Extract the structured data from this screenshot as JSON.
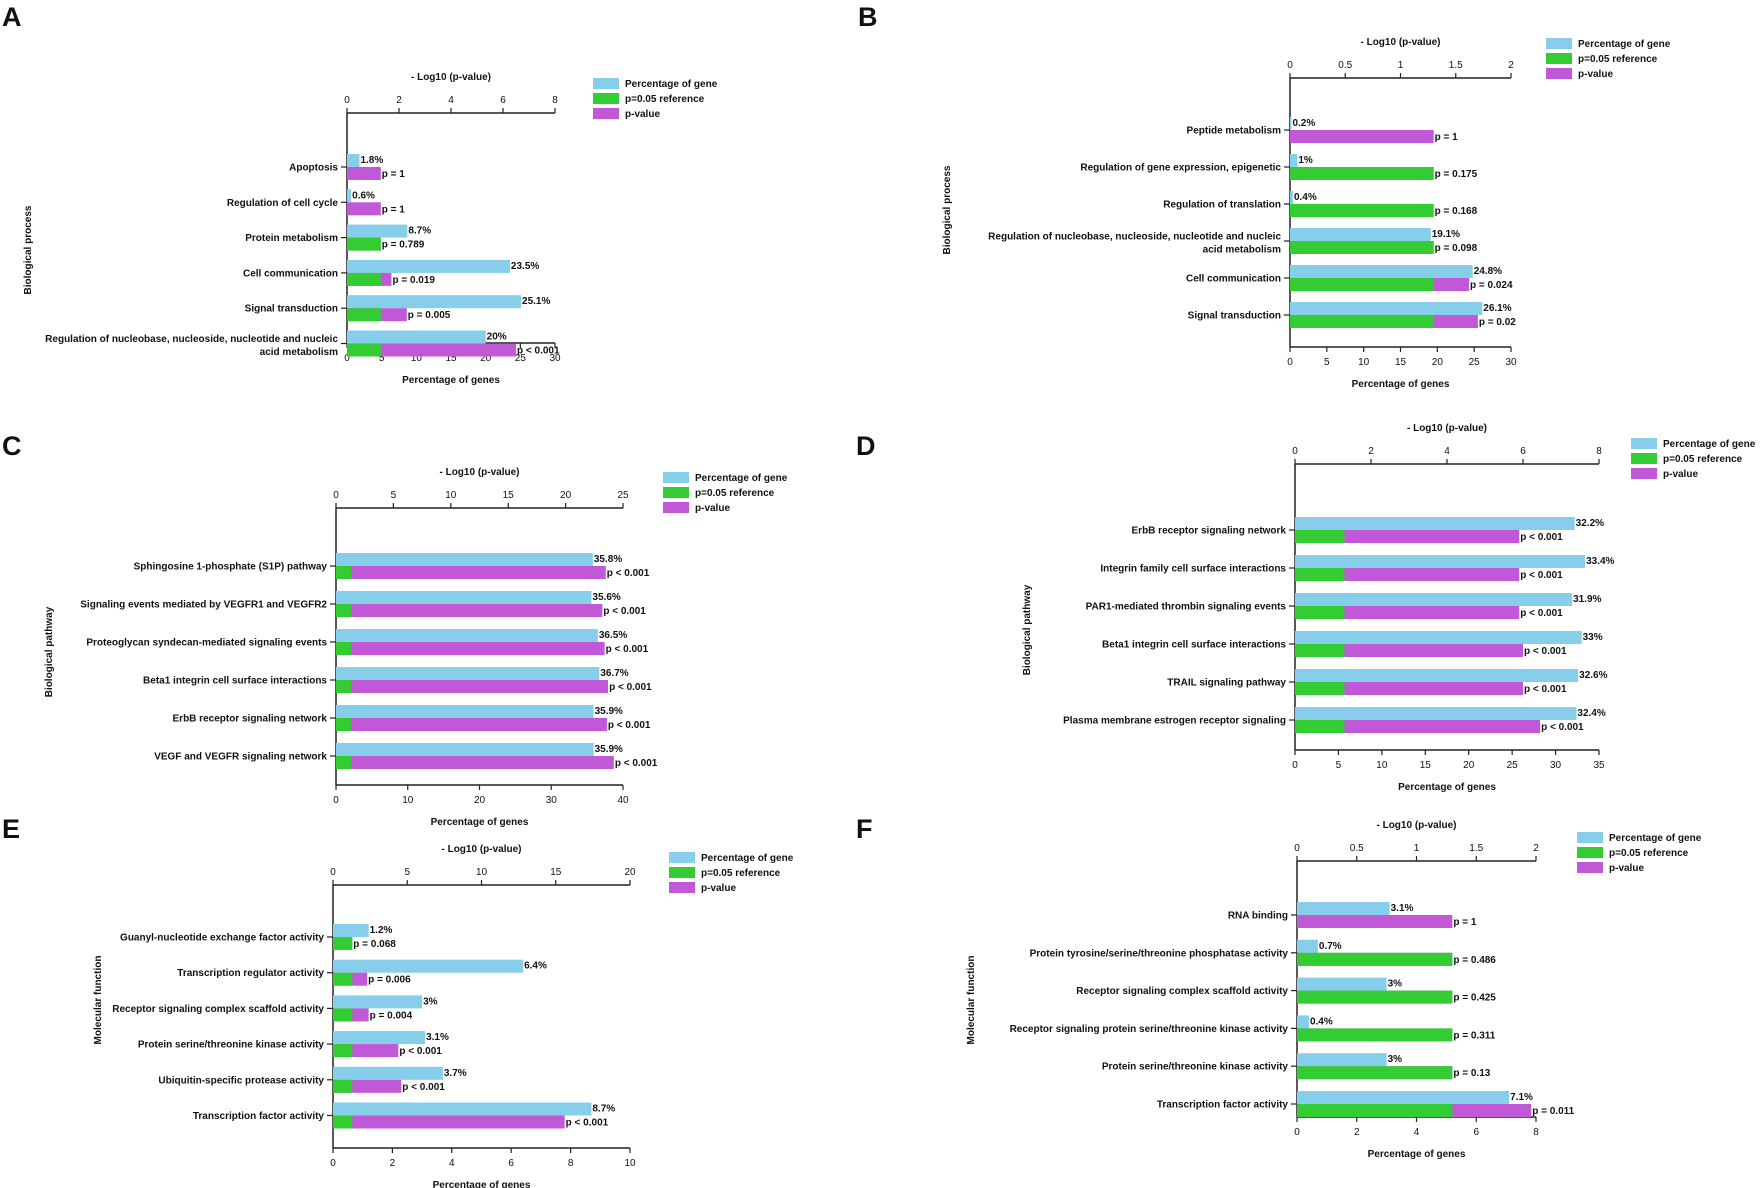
{
  "colors": {
    "percent": "#87CEEB",
    "reference": "#33CC33",
    "pvalue": "#C158D8",
    "axis": "#222222",
    "text": "#111111"
  },
  "legend": [
    "Percentage of gene",
    "p=0.05 reference",
    "p-value"
  ],
  "top_axis_label": "- Log10 (p-value)",
  "bottom_axis_label": "Percentage of genes",
  "chart_data": [
    {
      "panel": "A",
      "type": "bar",
      "ylabel": "Biological process",
      "xlim_pct": [
        0,
        30
      ],
      "xticks_pct": [
        0,
        5,
        10,
        15,
        20,
        25,
        30
      ],
      "xlim_log": [
        0,
        8
      ],
      "xticks_log": [
        0,
        2,
        4,
        6,
        8
      ],
      "reference_log": 1.301,
      "categories": [
        "Apoptosis",
        "Regulation of cell cycle",
        "Protein metabolism",
        "Cell communication",
        "Signal transduction",
        "Regulation of nucleobase, nucleoside, nucleotide and nucleic acid metabolism"
      ],
      "cat_lines": [
        [
          "Apoptosis"
        ],
        [
          "Regulation of cell cycle"
        ],
        [
          "Protein metabolism"
        ],
        [
          "Cell communication"
        ],
        [
          "Signal transduction"
        ],
        [
          "Regulation of nucleobase, nucleoside, nucleotide and nucleic",
          "acid metabolism"
        ]
      ],
      "percent": [
        1.8,
        0.6,
        8.7,
        23.5,
        25.1,
        20
      ],
      "percent_labels": [
        "1.8%",
        "0.6%",
        "8.7%",
        "23.5%",
        "25.1%",
        "20%"
      ],
      "log_pvalue": [
        1.3,
        1.3,
        1.3,
        1.71,
        2.3,
        6.5
      ],
      "p_labels": [
        "p = 1",
        "p = 1",
        "p = 0.789",
        "p = 0.019",
        "p = 0.005",
        "p < 0.001"
      ]
    },
    {
      "panel": "B",
      "type": "bar",
      "ylabel": "Biological process",
      "xlim_pct": [
        0,
        30
      ],
      "xticks_pct": [
        0,
        5,
        10,
        15,
        20,
        25,
        30
      ],
      "xlim_log": [
        0,
        2
      ],
      "xticks_log": [
        0,
        0.5,
        1,
        1.5,
        2
      ],
      "xtick_labels_log": [
        "0",
        "0.5",
        "1",
        "1.5",
        "2"
      ],
      "reference_log": 1.301,
      "categories": [
        "Peptide metabolism",
        "Regulation of gene expression, epigenetic",
        "Regulation of translation",
        "Regulation of nucleobase, nucleoside, nucleotide and nucleic acid metabolism",
        "Cell communication",
        "Signal transduction"
      ],
      "cat_lines": [
        [
          "Peptide metabolism"
        ],
        [
          "Regulation of gene expression, epigenetic"
        ],
        [
          "Regulation of translation"
        ],
        [
          "Regulation of nucleobase, nucleoside, nucleotide and nucleic",
          "acid metabolism"
        ],
        [
          "Cell communication"
        ],
        [
          "Signal transduction"
        ]
      ],
      "percent": [
        0.2,
        1,
        0.4,
        19.1,
        24.8,
        26.1
      ],
      "percent_labels": [
        "0.2%",
        "1%",
        "0.4%",
        "19.1%",
        "24.8%",
        "26.1%"
      ],
      "log_pvalue": [
        1.3,
        1.3,
        1.3,
        1.3,
        1.62,
        1.7
      ],
      "p_labels": [
        "p = 1",
        "p = 0.175",
        "p = 0.168",
        "p = 0.098",
        "p = 0.024",
        "p = 0.02"
      ]
    },
    {
      "panel": "C",
      "type": "bar",
      "ylabel": "Biological pathway",
      "xlim_pct": [
        0,
        40
      ],
      "xticks_pct": [
        0,
        10,
        20,
        30,
        40
      ],
      "xlim_log": [
        0,
        25
      ],
      "xticks_log": [
        0,
        5,
        10,
        15,
        20,
        25
      ],
      "reference_log": 1.301,
      "categories": [
        "Sphingosine 1-phosphate (S1P) pathway",
        "Signaling events mediated by VEGFR1 and VEGFR2",
        "Proteoglycan syndecan-mediated signaling events",
        "Beta1 integrin cell surface interactions",
        "ErbB receptor signaling network",
        "VEGF and VEGFR signaling network"
      ],
      "cat_lines": [
        [
          "Sphingosine 1-phosphate (S1P) pathway"
        ],
        [
          "Signaling events mediated by VEGFR1 and VEGFR2"
        ],
        [
          "Proteoglycan syndecan-mediated signaling events"
        ],
        [
          "Beta1 integrin cell surface interactions"
        ],
        [
          "ErbB receptor signaling network"
        ],
        [
          "VEGF and VEGFR signaling network"
        ]
      ],
      "percent": [
        35.8,
        35.6,
        36.5,
        36.7,
        35.9,
        35.9
      ],
      "percent_labels": [
        "35.8%",
        "35.6%",
        "36.5%",
        "36.7%",
        "35.9%",
        "35.9%"
      ],
      "log_pvalue": [
        23.5,
        23.2,
        23.4,
        23.7,
        23.6,
        24.2
      ],
      "p_labels": [
        "p < 0.001",
        "p < 0.001",
        "p < 0.001",
        "p < 0.001",
        "p < 0.001",
        "p < 0.001"
      ]
    },
    {
      "panel": "D",
      "type": "bar",
      "ylabel": "Biological pathway",
      "xlim_pct": [
        0,
        35
      ],
      "xticks_pct": [
        0,
        5,
        10,
        15,
        20,
        25,
        30,
        35
      ],
      "xlim_log": [
        0,
        8
      ],
      "xticks_log": [
        0,
        2,
        4,
        6,
        8
      ],
      "reference_log": 1.301,
      "categories": [
        "ErbB receptor signaling network",
        "Integrin family cell surface interactions",
        "PAR1-mediated thrombin signaling events",
        "Beta1 integrin cell surface interactions",
        "TRAIL signaling pathway",
        "Plasma membrane estrogen receptor signaling"
      ],
      "cat_lines": [
        [
          "ErbB receptor signaling network"
        ],
        [
          "Integrin family cell surface interactions"
        ],
        [
          "PAR1-mediated thrombin signaling events"
        ],
        [
          "Beta1 integrin cell surface interactions"
        ],
        [
          "TRAIL signaling pathway"
        ],
        [
          "Plasma membrane estrogen receptor signaling"
        ]
      ],
      "percent": [
        32.2,
        33.4,
        31.9,
        33,
        32.6,
        32.4
      ],
      "percent_labels": [
        "32.2%",
        "33.4%",
        "31.9%",
        "33%",
        "32.6%",
        "32.4%"
      ],
      "log_pvalue": [
        5.9,
        5.9,
        5.9,
        6.0,
        6.0,
        6.45
      ],
      "p_labels": [
        "p < 0.001",
        "p < 0.001",
        "p < 0.001",
        "p < 0.001",
        "p < 0.001",
        "p < 0.001"
      ]
    },
    {
      "panel": "E",
      "type": "bar",
      "ylabel": "Molecular function",
      "xlim_pct": [
        0,
        10
      ],
      "xticks_pct": [
        0,
        2,
        4,
        6,
        8,
        10
      ],
      "xlim_log": [
        0,
        20
      ],
      "xticks_log": [
        0,
        5,
        10,
        15,
        20
      ],
      "reference_log": 1.301,
      "categories": [
        "Guanyl-nucleotide exchange factor activity",
        "Transcription regulator activity",
        "Receptor signaling complex scaffold activity",
        "Protein serine/threonine kinase activity",
        "Ubiquitin-specific protease activity",
        "Transcription factor activity"
      ],
      "cat_lines": [
        [
          "Guanyl-nucleotide exchange factor activity"
        ],
        [
          "Transcription regulator activity"
        ],
        [
          "Receptor signaling complex scaffold activity"
        ],
        [
          "Protein serine/threonine kinase activity"
        ],
        [
          "Ubiquitin-specific protease activity"
        ],
        [
          "Transcription factor activity"
        ]
      ],
      "percent": [
        1.2,
        6.4,
        3,
        3.1,
        3.7,
        8.7
      ],
      "percent_labels": [
        "1.2%",
        "6.4%",
        "3%",
        "3.1%",
        "3.7%",
        "8.7%"
      ],
      "log_pvalue": [
        1.3,
        2.3,
        2.4,
        4.4,
        4.6,
        15.6
      ],
      "p_labels": [
        "p = 0.068",
        "p = 0.006",
        "p = 0.004",
        "p < 0.001",
        "p < 0.001",
        "p < 0.001"
      ]
    },
    {
      "panel": "F",
      "type": "bar",
      "ylabel": "Molecular function",
      "xlim_pct": [
        0,
        8
      ],
      "xticks_pct": [
        0,
        2,
        4,
        6,
        8
      ],
      "xlim_log": [
        0,
        2
      ],
      "xticks_log": [
        0,
        0.5,
        1,
        1.5,
        2
      ],
      "xtick_labels_log": [
        "0",
        "0.5",
        "1",
        "1.5",
        "2"
      ],
      "reference_log": 1.301,
      "categories": [
        "RNA binding",
        "Protein tyrosine/serine/threonine phosphatase activity",
        "Receptor signaling complex scaffold activity",
        "Receptor signaling protein serine/threonine kinase activity",
        "Protein serine/threonine kinase activity",
        "Transcription factor activity"
      ],
      "cat_lines": [
        [
          "RNA binding"
        ],
        [
          "Protein tyrosine/serine/threonine phosphatase activity"
        ],
        [
          "Receptor signaling complex scaffold activity"
        ],
        [
          "Receptor signaling protein serine/threonine kinase activity"
        ],
        [
          "Protein serine/threonine kinase activity"
        ],
        [
          "Transcription factor activity"
        ]
      ],
      "percent": [
        3.1,
        0.7,
        3,
        0.4,
        3,
        7.1
      ],
      "percent_labels": [
        "3.1%",
        "0.7%",
        "3%",
        "0.4%",
        "3%",
        "7.1%"
      ],
      "log_pvalue": [
        1.3,
        1.3,
        1.3,
        1.3,
        1.3,
        1.96
      ],
      "p_labels": [
        "p = 1",
        "p = 0.486",
        "p = 0.425",
        "p = 0.311",
        "p = 0.13",
        "p = 0.011"
      ]
    }
  ]
}
